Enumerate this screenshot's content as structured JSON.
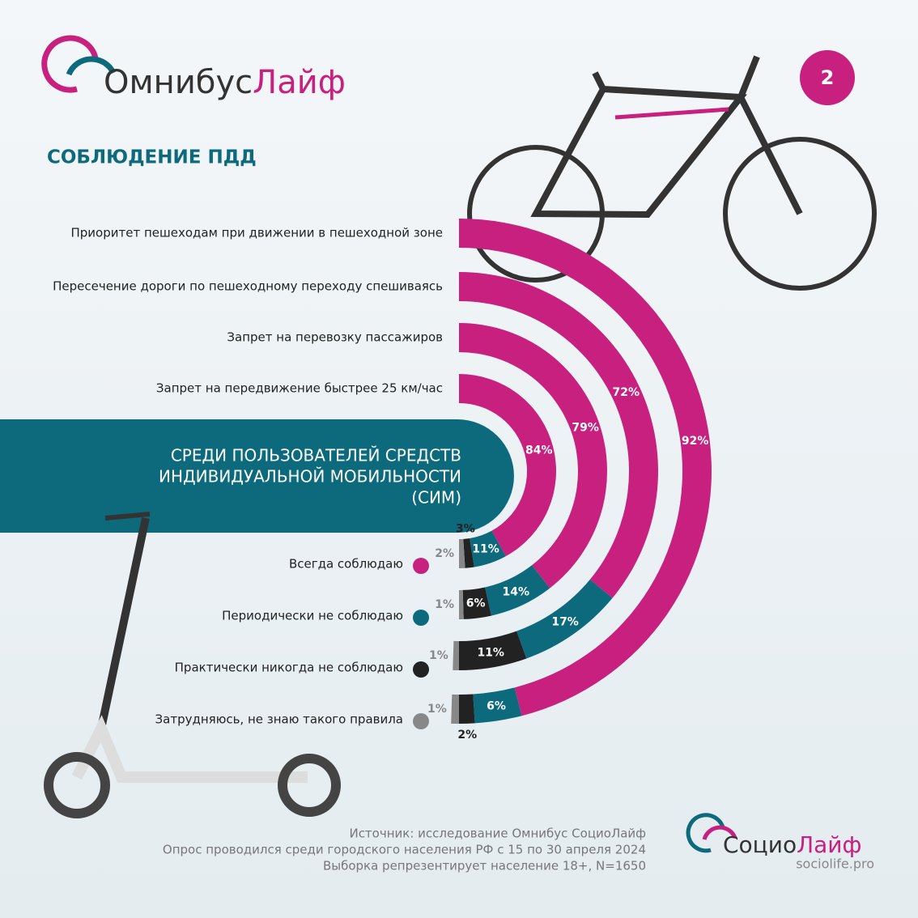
{
  "chart_data": {
    "type": "radial_bar",
    "logo": {
      "part1": "Омнибус",
      "part2": "Лайф"
    },
    "page_number": "2",
    "title": "СОБЛЮДЕНИЕ ПДД",
    "subtitle": [
      "СРЕДИ ПОЛЬЗОВАТЕЛЕЙ СРЕДСТВ",
      "ИНДИВИДУАЛЬНОЙ МОБИЛЬНОСТИ",
      "(СИМ)"
    ],
    "categories": [
      "Приоритет пешеходам при движении в пешеходной зоне",
      "Пересечение дороги по пешеходному переходу спешиваясь",
      "Запрет на перевозку пассажиров",
      "Запрет на передвижение быстрее 25 км/час"
    ],
    "series": [
      {
        "name": "Всегда соблюдаю",
        "color": "#c8207e",
        "values": [
          92,
          72,
          79,
          84
        ],
        "value_labels": [
          "92%",
          "72%",
          "79%",
          "84%"
        ]
      },
      {
        "name": "Периодически не соблюдаю",
        "color": "#0d6a7d",
        "values": [
          6,
          17,
          14,
          11
        ],
        "value_labels": [
          "6%",
          "17%",
          "14%",
          "11%"
        ]
      },
      {
        "name": "Практически никогда не соблюдаю",
        "color": "#222222",
        "values": [
          2,
          11,
          6,
          3
        ],
        "value_labels": [
          "2%",
          "11%",
          "6%",
          "3%"
        ]
      },
      {
        "name": "Затрудняюсь, не знаю такого правила",
        "color": "#888888",
        "values": [
          1,
          1,
          1,
          2
        ],
        "value_labels": [
          "1%",
          "1%",
          "1%",
          "2%"
        ]
      }
    ],
    "source": [
      "Источник: исследование Омнибус СоциоЛайф",
      "Опрос проводился среди городского населения РФ с 15 по 30 апреля 2024",
      "Выборка репрезентирует население 18+, N=1650"
    ],
    "footer_logo": {
      "part1": "Социо",
      "part2": "Лайф",
      "site": "sociolife.pro"
    }
  }
}
